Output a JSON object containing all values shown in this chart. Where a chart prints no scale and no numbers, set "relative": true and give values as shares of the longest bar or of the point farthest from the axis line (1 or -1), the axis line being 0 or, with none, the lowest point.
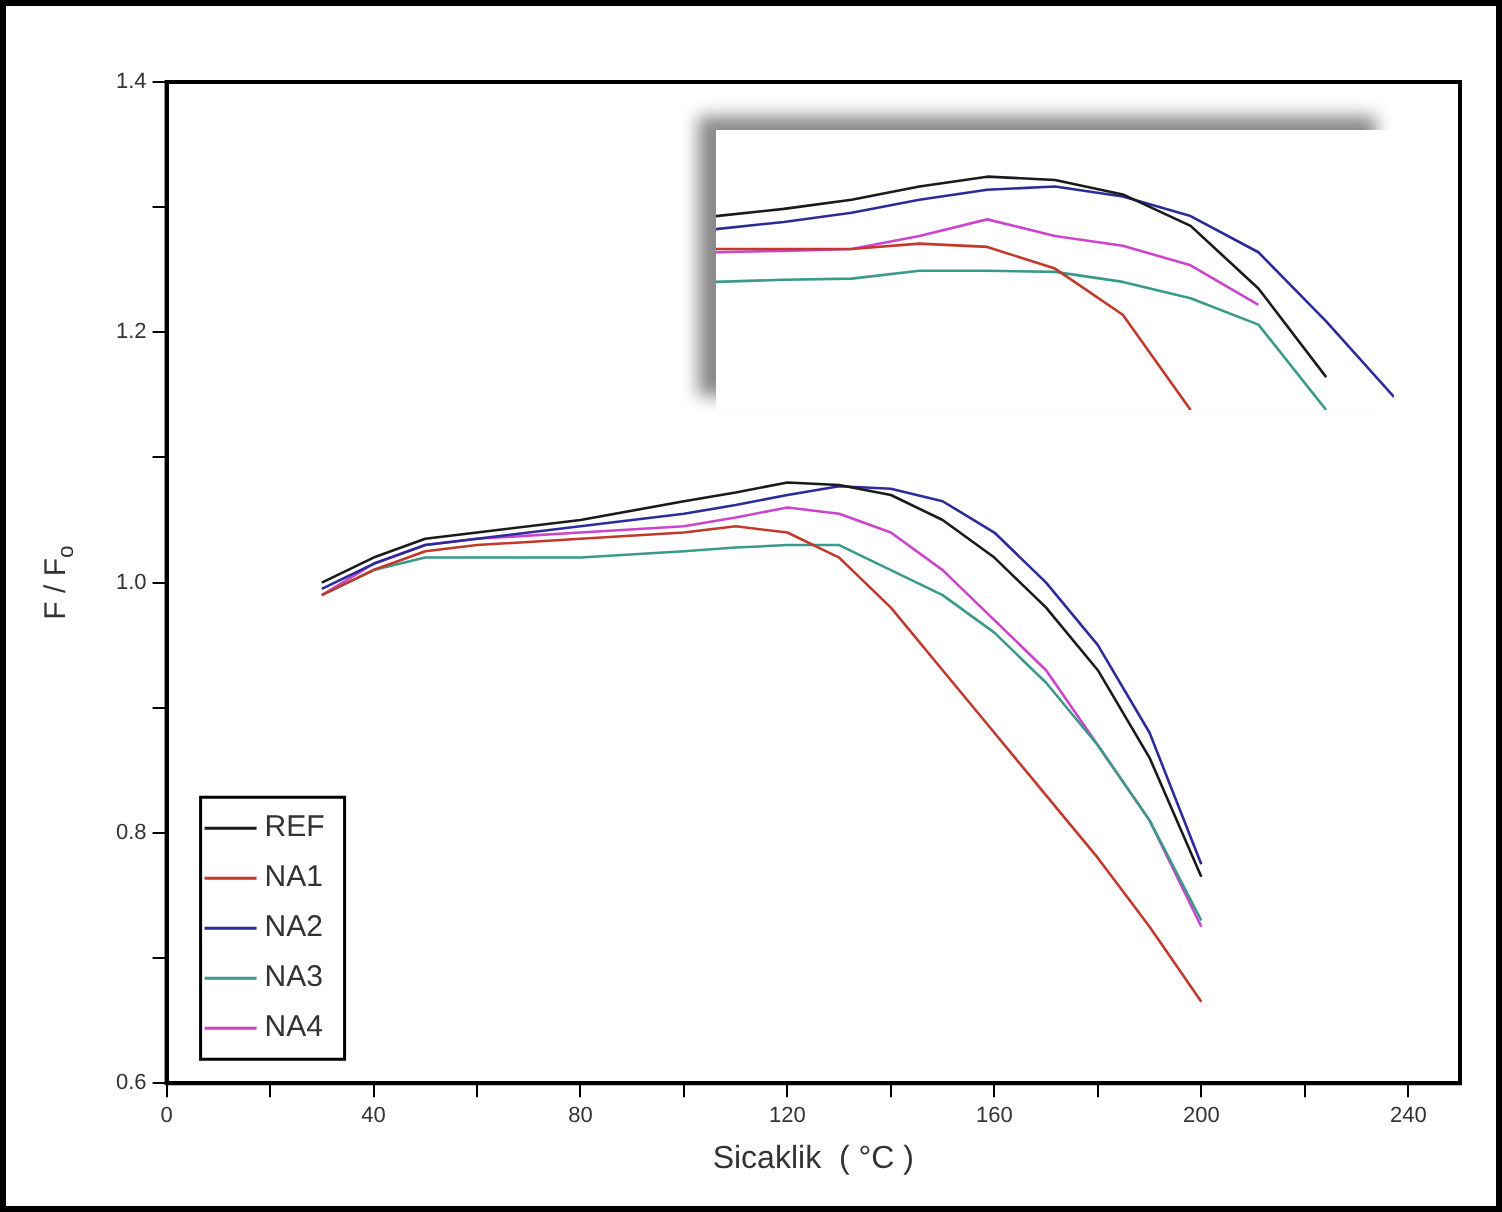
{
  "chart_data": [
    {
      "type": "line",
      "xlabel": "Sicaklik  ( °C )",
      "ylabel": "F / F$_{o}$",
      "x": [
        30,
        40,
        50,
        60,
        80,
        100,
        110,
        120,
        130,
        140,
        150,
        160,
        170,
        180,
        190,
        200
      ],
      "xlim": [
        0,
        250
      ],
      "xticks": [
        0,
        {
          "value": 20,
          "label": null
        },
        40,
        {
          "value": 60,
          "label": null
        },
        80,
        {
          "value": 100,
          "label": null
        },
        120,
        {
          "value": 140,
          "label": null
        },
        160,
        {
          "value": 180,
          "label": null
        },
        200,
        {
          "value": 220,
          "label": null
        },
        240
      ],
      "ylim": [
        0.6,
        1.4
      ],
      "yticks": [
        0.6,
        {
          "value": 0.7,
          "label": null
        },
        0.8,
        {
          "value": 0.9,
          "label": null
        },
        {
          "value": 1.0,
          "label": "1.0"
        },
        {
          "value": 1.1,
          "label": null
        },
        1.2,
        {
          "value": 1.3,
          "label": null
        },
        1.4
      ],
      "legend": "bottom left",
      "marker": "none",
      "series": [
        {
          "name": "REF",
          "color": "#1a1a1a",
          "values": [
            1.0,
            1.02,
            1.035,
            1.04,
            1.05,
            1.065,
            1.072,
            1.08,
            1.078,
            1.07,
            1.05,
            1.02,
            0.98,
            0.93,
            0.86,
            0.765
          ]
        },
        {
          "name": "NA1",
          "color": "#c0392b",
          "values": [
            0.99,
            1.01,
            1.025,
            1.03,
            1.035,
            1.04,
            1.045,
            1.04,
            1.02,
            0.98,
            0.93,
            0.88,
            0.83,
            0.78,
            0.725,
            0.665
          ]
        },
        {
          "name": "NA2",
          "color": "#2b2b9a",
          "values": [
            0.995,
            1.015,
            1.03,
            1.035,
            1.045,
            1.055,
            1.062,
            1.07,
            1.077,
            1.075,
            1.065,
            1.04,
            1.0,
            0.95,
            0.88,
            0.775
          ]
        },
        {
          "name": "NA3",
          "color": "#3a9a8a",
          "values": [
            0.99,
            1.01,
            1.02,
            1.02,
            1.02,
            1.025,
            1.028,
            1.03,
            1.03,
            1.01,
            0.99,
            0.96,
            0.92,
            0.87,
            0.81,
            0.73
          ]
        },
        {
          "name": "NA4",
          "color": "#cc44cc",
          "values": [
            0.99,
            1.015,
            1.03,
            1.035,
            1.04,
            1.045,
            1.052,
            1.06,
            1.055,
            1.04,
            1.01,
            0.97,
            0.93,
            0.87,
            0.81,
            0.725
          ]
        }
      ]
    },
    {
      "type": "line",
      "relative": true,
      "categories": [
        null,
        null,
        null,
        null,
        null,
        null,
        null,
        null,
        null,
        null,
        null
      ],
      "series": [
        {
          "color": "#1a1a1a",
          "values": [
            0.831,
            0.862,
            0.901,
            0.958,
            1.0,
            0.986,
            0.924,
            0.789,
            0.521,
            0.141,
            null
          ]
        },
        {
          "color": "#2b2b9a",
          "values": [
            0.775,
            0.806,
            0.845,
            0.901,
            0.944,
            0.958,
            0.915,
            0.831,
            0.676,
            0.38,
            0.056
          ]
        },
        {
          "color": "#c0392b",
          "values": [
            0.69,
            0.69,
            0.69,
            0.713,
            0.699,
            0.606,
            0.408,
            0,
            null,
            null,
            null
          ]
        },
        {
          "color": "#3a9a8a",
          "values": [
            0.549,
            0.558,
            0.563,
            0.597,
            0.597,
            0.592,
            0.549,
            0.479,
            0.366,
            0,
            null
          ]
        },
        {
          "color": "#cc44cc",
          "values": [
            0.676,
            0.682,
            0.69,
            0.746,
            0.817,
            0.746,
            0.704,
            0.62,
            0.451,
            null,
            null
          ]
        }
      ]
    }
  ]
}
